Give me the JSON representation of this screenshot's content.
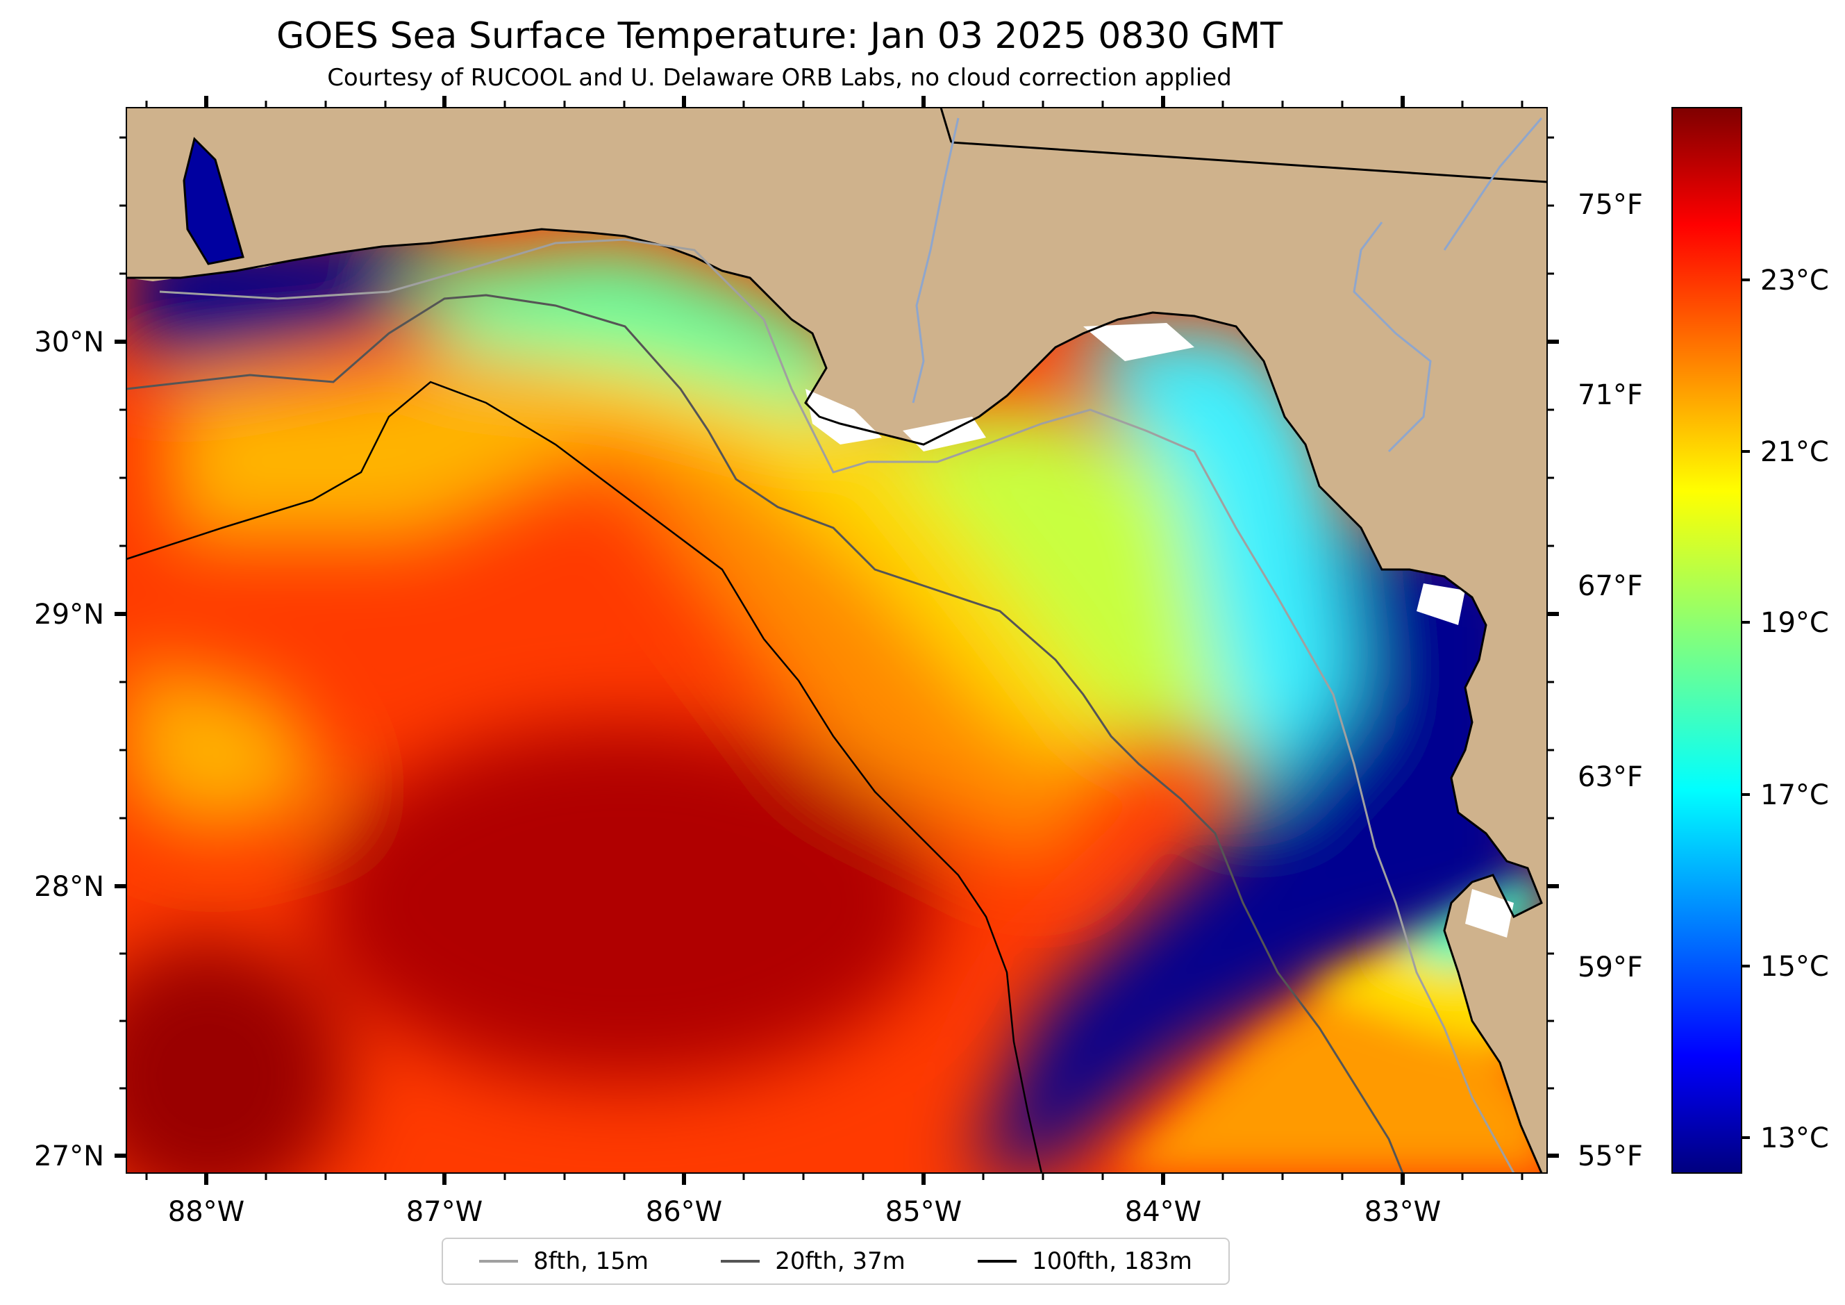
{
  "title": "GOES Sea Surface Temperature: Jan 03 2025 0830 GMT",
  "subtitle": "Courtesy of RUCOOL and U. Delaware ORB Labs, no cloud correction applied",
  "map": {
    "lon_labels": [
      "88°W",
      "87°W",
      "86°W",
      "85°W",
      "84°W",
      "83°W"
    ],
    "lat_labels": [
      "30°N",
      "29°N",
      "28°N",
      "27°N"
    ],
    "fahrenheit_labels": [
      "75°F",
      "71°F",
      "67°F",
      "63°F",
      "59°F",
      "55°F"
    ],
    "land_color": "#cfb28c",
    "coastline_color": "#000000",
    "river_color": "#8fa6cc"
  },
  "colorbar": {
    "colormap": "jet",
    "unit": "°C",
    "labels": [
      "23°C",
      "21°C",
      "19°C",
      "17°C",
      "15°C",
      "13°C"
    ],
    "range_c": [
      12.8,
      25.2
    ]
  },
  "legend": {
    "items": [
      {
        "label": "8fth, 15m",
        "color": "#a0a0a0"
      },
      {
        "label": "20fth, 37m",
        "color": "#555555"
      },
      {
        "label": "100fth, 183m",
        "color": "#000000"
      }
    ]
  }
}
